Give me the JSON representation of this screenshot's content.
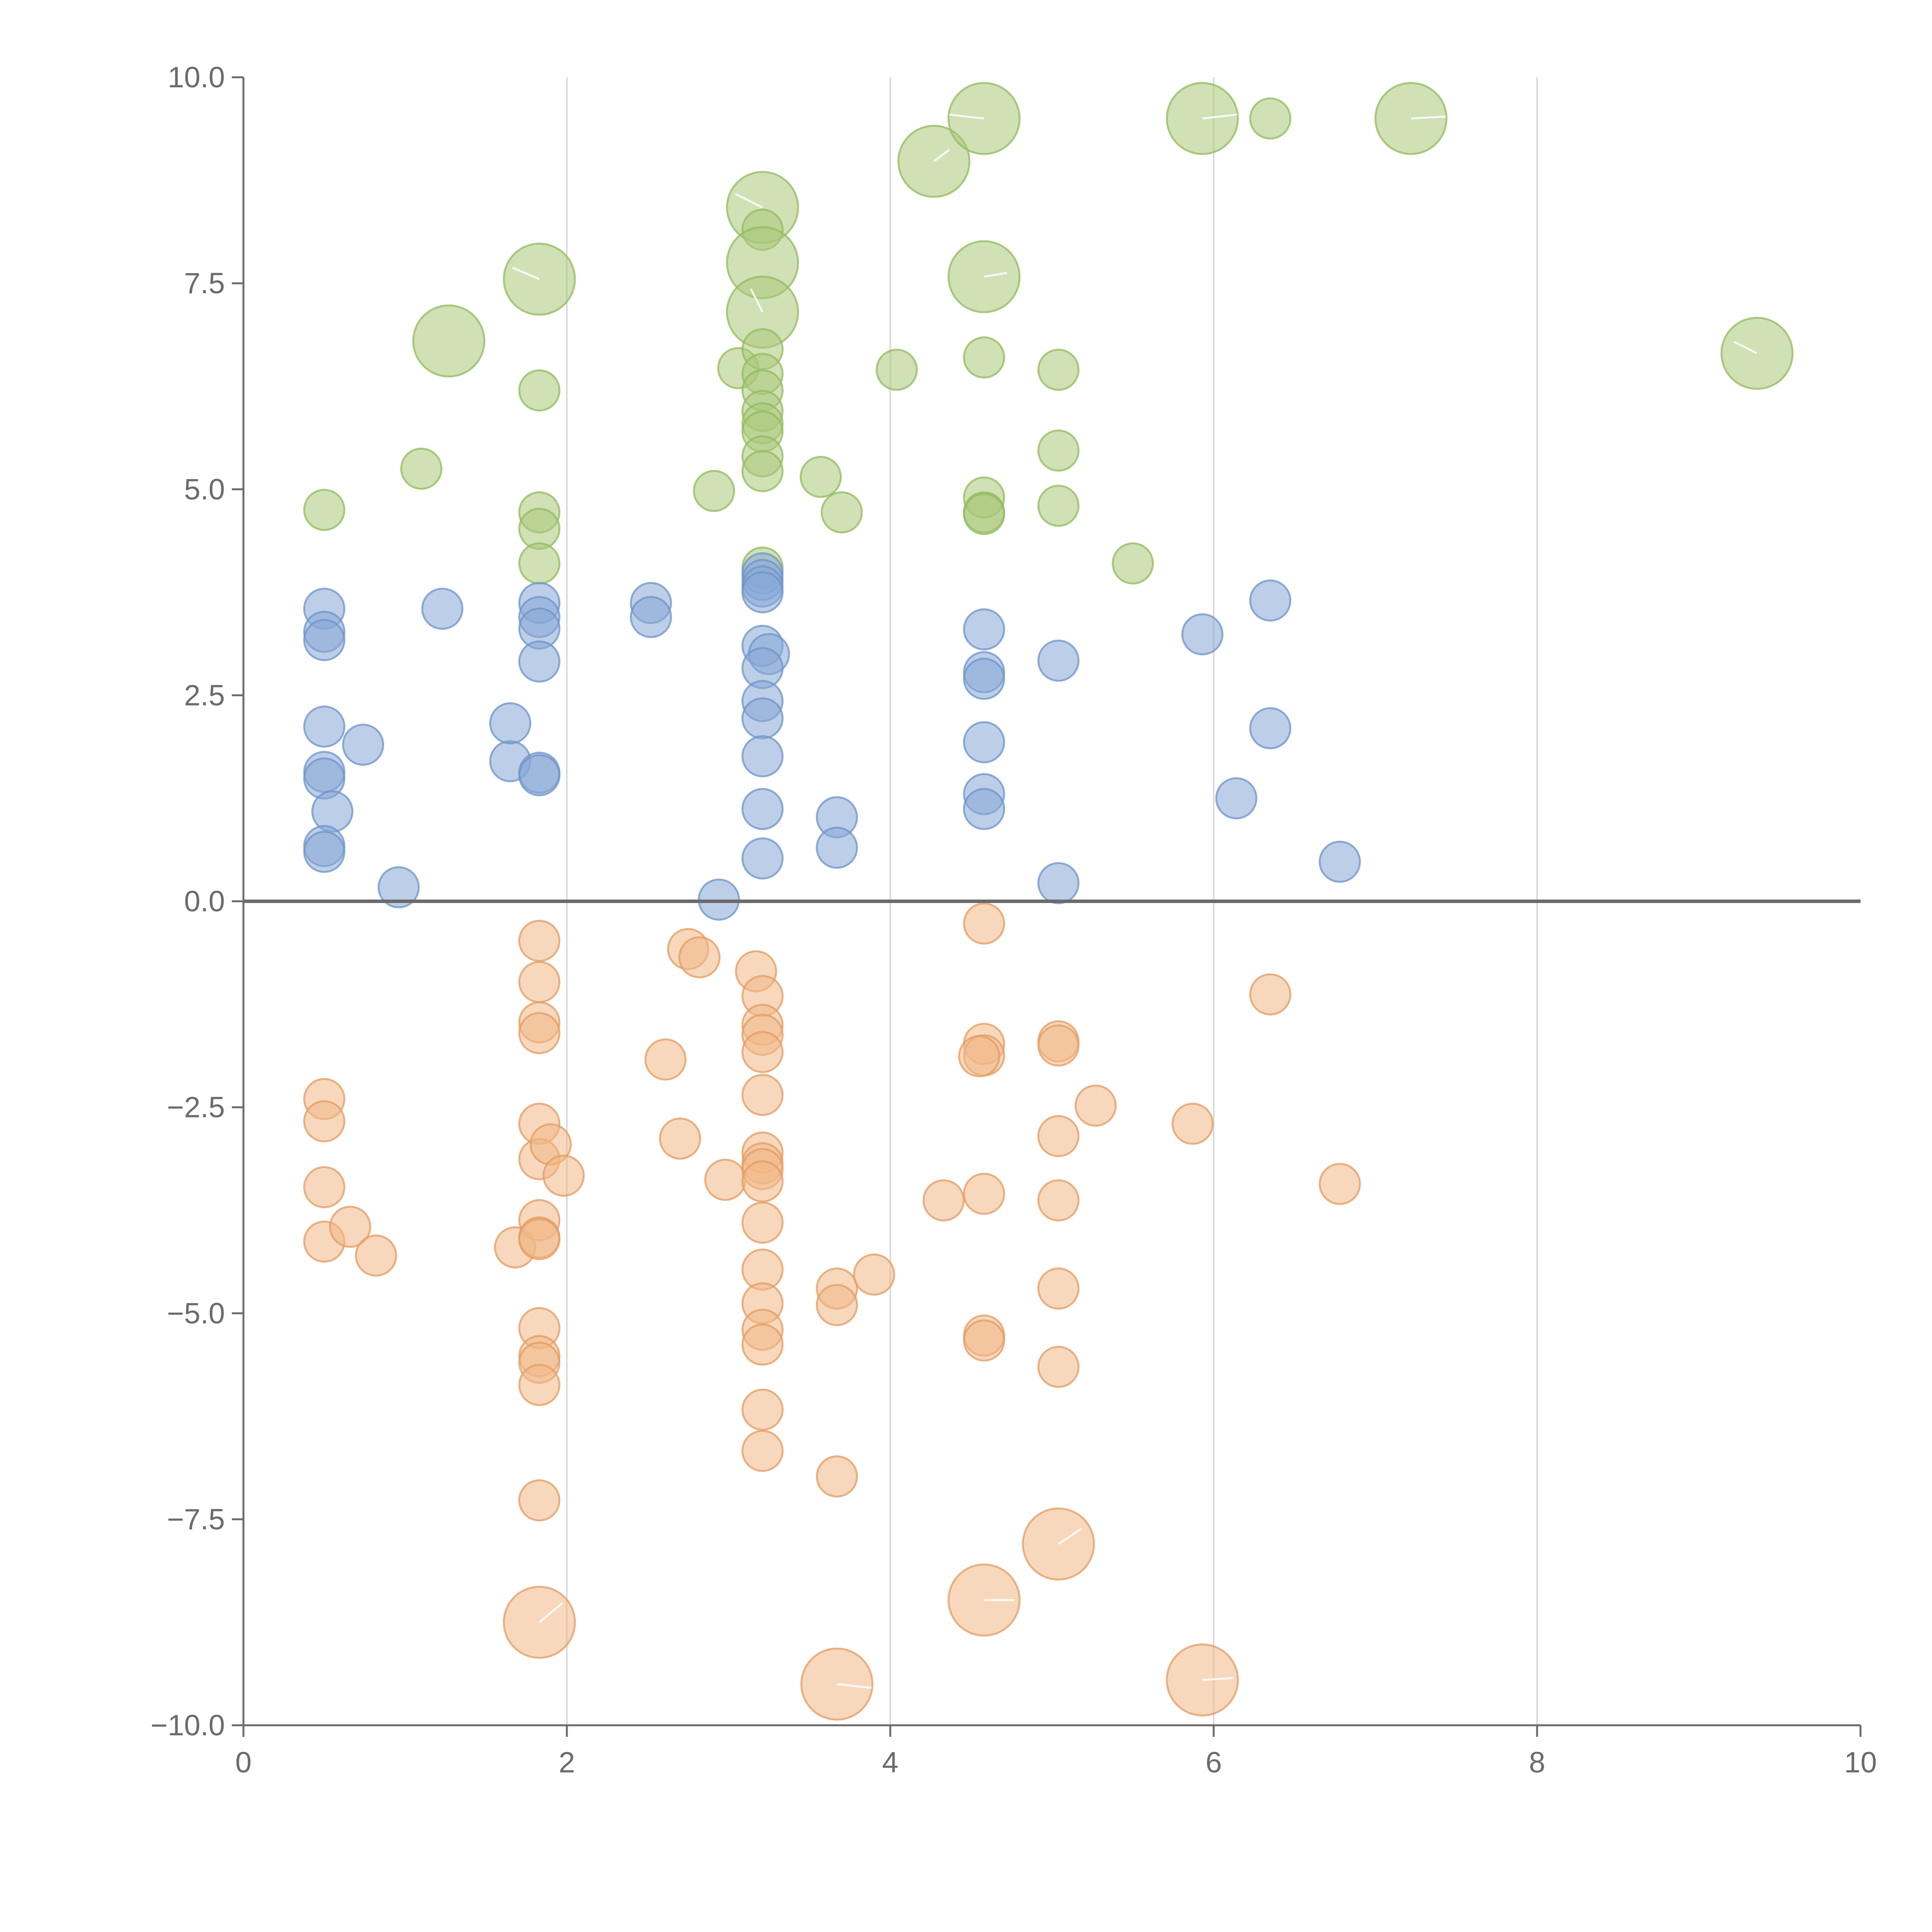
{
  "chart_data": {
    "type": "scatter",
    "title": "",
    "xlabel": "",
    "ylabel": "",
    "xlim": [
      0,
      10
    ],
    "ylim": [
      -10,
      10
    ],
    "grid": "vertical",
    "x_ticks": [
      0,
      2,
      4,
      6,
      8,
      10
    ],
    "x_tick_labels": [
      "0",
      "2",
      "4",
      "6",
      "8",
      "10"
    ],
    "y_ticks": [
      10,
      7.5,
      5,
      2.5,
      0,
      -2.5,
      -5,
      -7.5,
      -10
    ],
    "y_tick_labels": [
      "10.0",
      "7.5",
      "5.0",
      "2.5",
      "0.0",
      "−2.5",
      "−5.0",
      "−7.5",
      "−10.0"
    ],
    "zero_line": 0,
    "series": [
      {
        "name": "green",
        "color": "#a9c97a",
        "stroke": "#93ba5c",
        "points": [
          {
            "x": 0.5,
            "y": 4.75,
            "s": 1
          },
          {
            "x": 1.1,
            "y": 5.25,
            "s": 1
          },
          {
            "x": 1.27,
            "y": 6.8,
            "s": 2
          },
          {
            "x": 1.83,
            "y": 7.55,
            "s": 2
          },
          {
            "x": 1.83,
            "y": 6.2,
            "s": 1
          },
          {
            "x": 1.83,
            "y": 4.72,
            "s": 1
          },
          {
            "x": 1.83,
            "y": 4.52,
            "s": 1
          },
          {
            "x": 1.83,
            "y": 4.1,
            "s": 1
          },
          {
            "x": 2.91,
            "y": 4.98,
            "s": 1
          },
          {
            "x": 3.06,
            "y": 6.47,
            "s": 1
          },
          {
            "x": 3.21,
            "y": 8.42,
            "s": 2
          },
          {
            "x": 3.21,
            "y": 8.15,
            "s": 1
          },
          {
            "x": 3.21,
            "y": 7.75,
            "s": 2
          },
          {
            "x": 3.21,
            "y": 7.15,
            "s": 2
          },
          {
            "x": 3.21,
            "y": 6.7,
            "s": 1
          },
          {
            "x": 3.21,
            "y": 6.4,
            "s": 1
          },
          {
            "x": 3.21,
            "y": 6.2,
            "s": 1
          },
          {
            "x": 3.21,
            "y": 5.95,
            "s": 1
          },
          {
            "x": 3.21,
            "y": 5.8,
            "s": 1
          },
          {
            "x": 3.21,
            "y": 5.7,
            "s": 1
          },
          {
            "x": 3.21,
            "y": 5.4,
            "s": 1
          },
          {
            "x": 3.21,
            "y": 5.22,
            "s": 1
          },
          {
            "x": 3.21,
            "y": 4.05,
            "s": 1
          },
          {
            "x": 3.57,
            "y": 5.15,
            "s": 1
          },
          {
            "x": 3.7,
            "y": 4.72,
            "s": 1
          },
          {
            "x": 4.04,
            "y": 6.45,
            "s": 1
          },
          {
            "x": 4.27,
            "y": 8.98,
            "s": 2
          },
          {
            "x": 4.58,
            "y": 9.5,
            "s": 2
          },
          {
            "x": 4.58,
            "y": 7.58,
            "s": 2
          },
          {
            "x": 4.58,
            "y": 6.6,
            "s": 1
          },
          {
            "x": 4.58,
            "y": 4.9,
            "s": 1
          },
          {
            "x": 4.58,
            "y": 4.72,
            "s": 1
          },
          {
            "x": 4.58,
            "y": 4.7,
            "s": 1
          },
          {
            "x": 5.04,
            "y": 6.45,
            "s": 1
          },
          {
            "x": 5.04,
            "y": 5.47,
            "s": 1
          },
          {
            "x": 5.04,
            "y": 4.8,
            "s": 1
          },
          {
            "x": 5.5,
            "y": 4.1,
            "s": 1
          },
          {
            "x": 5.93,
            "y": 9.5,
            "s": 2
          },
          {
            "x": 6.35,
            "y": 9.5,
            "s": 1
          },
          {
            "x": 7.22,
            "y": 9.5,
            "s": 2
          },
          {
            "x": 9.36,
            "y": 6.65,
            "s": 2
          }
        ]
      },
      {
        "name": "blue",
        "color": "#86a7d6",
        "stroke": "#6e93c9",
        "points": [
          {
            "x": 0.5,
            "y": 3.55,
            "s": 1
          },
          {
            "x": 0.5,
            "y": 3.27,
            "s": 1
          },
          {
            "x": 0.5,
            "y": 3.17,
            "s": 1
          },
          {
            "x": 0.5,
            "y": 2.12,
            "s": 1
          },
          {
            "x": 0.5,
            "y": 1.57,
            "s": 1
          },
          {
            "x": 0.5,
            "y": 1.49,
            "s": 1
          },
          {
            "x": 0.55,
            "y": 1.09,
            "s": 1
          },
          {
            "x": 0.5,
            "y": 0.67,
            "s": 1
          },
          {
            "x": 0.5,
            "y": 0.6,
            "s": 1
          },
          {
            "x": 0.74,
            "y": 1.9,
            "s": 1
          },
          {
            "x": 0.96,
            "y": 0.17,
            "s": 1
          },
          {
            "x": 1.23,
            "y": 3.55,
            "s": 1
          },
          {
            "x": 1.65,
            "y": 1.7,
            "s": 1
          },
          {
            "x": 1.65,
            "y": 2.16,
            "s": 1
          },
          {
            "x": 1.83,
            "y": 1.56,
            "s": 1
          },
          {
            "x": 1.83,
            "y": 1.53,
            "s": 1
          },
          {
            "x": 1.83,
            "y": 3.62,
            "s": 1
          },
          {
            "x": 1.83,
            "y": 3.45,
            "s": 1
          },
          {
            "x": 1.83,
            "y": 3.31,
            "s": 1
          },
          {
            "x": 1.83,
            "y": 2.91,
            "s": 1
          },
          {
            "x": 2.52,
            "y": 3.62,
            "s": 1
          },
          {
            "x": 2.52,
            "y": 3.45,
            "s": 1
          },
          {
            "x": 2.94,
            "y": 0.02,
            "s": 1
          },
          {
            "x": 3.21,
            "y": 3.98,
            "s": 1
          },
          {
            "x": 3.21,
            "y": 3.9,
            "s": 1
          },
          {
            "x": 3.21,
            "y": 3.82,
            "s": 1
          },
          {
            "x": 3.21,
            "y": 3.75,
            "s": 1
          },
          {
            "x": 3.21,
            "y": 3.1,
            "s": 1
          },
          {
            "x": 3.25,
            "y": 3.0,
            "s": 1
          },
          {
            "x": 3.21,
            "y": 2.83,
            "s": 1
          },
          {
            "x": 3.21,
            "y": 2.43,
            "s": 1
          },
          {
            "x": 3.21,
            "y": 2.22,
            "s": 1
          },
          {
            "x": 3.21,
            "y": 1.76,
            "s": 1
          },
          {
            "x": 3.21,
            "y": 1.12,
            "s": 1
          },
          {
            "x": 3.21,
            "y": 0.52,
            "s": 1
          },
          {
            "x": 3.67,
            "y": 1.02,
            "s": 1
          },
          {
            "x": 3.67,
            "y": 0.65,
            "s": 1
          },
          {
            "x": 4.58,
            "y": 3.3,
            "s": 1
          },
          {
            "x": 4.58,
            "y": 2.78,
            "s": 1
          },
          {
            "x": 4.58,
            "y": 2.7,
            "s": 1
          },
          {
            "x": 4.58,
            "y": 1.93,
            "s": 1
          },
          {
            "x": 4.58,
            "y": 1.3,
            "s": 1
          },
          {
            "x": 4.58,
            "y": 1.12,
            "s": 1
          },
          {
            "x": 5.04,
            "y": 2.92,
            "s": 1
          },
          {
            "x": 5.04,
            "y": 0.22,
            "s": 1
          },
          {
            "x": 5.93,
            "y": 3.24,
            "s": 1
          },
          {
            "x": 6.14,
            "y": 1.25,
            "s": 1
          },
          {
            "x": 6.35,
            "y": 3.65,
            "s": 1
          },
          {
            "x": 6.35,
            "y": 2.1,
            "s": 1
          },
          {
            "x": 6.78,
            "y": 0.48,
            "s": 1
          }
        ]
      },
      {
        "name": "orange",
        "color": "#f0b887",
        "stroke": "#e39b61",
        "points": [
          {
            "x": 0.5,
            "y": -2.4,
            "s": 1
          },
          {
            "x": 0.5,
            "y": -2.67,
            "s": 1
          },
          {
            "x": 0.5,
            "y": -3.47,
            "s": 1
          },
          {
            "x": 0.5,
            "y": -4.13,
            "s": 1
          },
          {
            "x": 0.66,
            "y": -3.95,
            "s": 1
          },
          {
            "x": 0.82,
            "y": -4.3,
            "s": 1
          },
          {
            "x": 1.68,
            "y": -4.2,
            "s": 1
          },
          {
            "x": 1.83,
            "y": -0.48,
            "s": 1
          },
          {
            "x": 1.83,
            "y": -0.98,
            "s": 1
          },
          {
            "x": 1.83,
            "y": -1.47,
            "s": 1
          },
          {
            "x": 1.83,
            "y": -1.6,
            "s": 1
          },
          {
            "x": 1.83,
            "y": -2.7,
            "s": 1
          },
          {
            "x": 1.83,
            "y": -3.13,
            "s": 1
          },
          {
            "x": 1.9,
            "y": -2.95,
            "s": 1
          },
          {
            "x": 1.98,
            "y": -3.33,
            "s": 1
          },
          {
            "x": 1.83,
            "y": -3.87,
            "s": 1
          },
          {
            "x": 1.83,
            "y": -4.08,
            "s": 1
          },
          {
            "x": 1.83,
            "y": -4.1,
            "s": 1
          },
          {
            "x": 1.83,
            "y": -5.18,
            "s": 1
          },
          {
            "x": 1.83,
            "y": -5.52,
            "s": 1
          },
          {
            "x": 1.83,
            "y": -5.6,
            "s": 1
          },
          {
            "x": 1.83,
            "y": -5.87,
            "s": 1
          },
          {
            "x": 1.83,
            "y": -7.27,
            "s": 1
          },
          {
            "x": 1.83,
            "y": -8.75,
            "s": 2
          },
          {
            "x": 2.61,
            "y": -1.92,
            "s": 1
          },
          {
            "x": 2.7,
            "y": -2.88,
            "s": 1
          },
          {
            "x": 2.75,
            "y": -0.58,
            "s": 1
          },
          {
            "x": 2.82,
            "y": -0.68,
            "s": 1
          },
          {
            "x": 2.98,
            "y": -3.38,
            "s": 1
          },
          {
            "x": 3.17,
            "y": -0.85,
            "s": 1
          },
          {
            "x": 3.21,
            "y": -1.15,
            "s": 1
          },
          {
            "x": 3.21,
            "y": -1.5,
            "s": 1
          },
          {
            "x": 3.21,
            "y": -1.62,
            "s": 1
          },
          {
            "x": 3.21,
            "y": -1.83,
            "s": 1
          },
          {
            "x": 3.21,
            "y": -2.35,
            "s": 1
          },
          {
            "x": 3.21,
            "y": -3.05,
            "s": 1
          },
          {
            "x": 3.21,
            "y": -3.18,
            "s": 1
          },
          {
            "x": 3.21,
            "y": -3.25,
            "s": 1
          },
          {
            "x": 3.21,
            "y": -3.4,
            "s": 1
          },
          {
            "x": 3.21,
            "y": -3.9,
            "s": 1
          },
          {
            "x": 3.21,
            "y": -4.47,
            "s": 1
          },
          {
            "x": 3.21,
            "y": -4.88,
            "s": 1
          },
          {
            "x": 3.21,
            "y": -5.2,
            "s": 1
          },
          {
            "x": 3.21,
            "y": -5.38,
            "s": 1
          },
          {
            "x": 3.21,
            "y": -6.17,
            "s": 1
          },
          {
            "x": 3.21,
            "y": -6.67,
            "s": 1
          },
          {
            "x": 3.67,
            "y": -4.7,
            "s": 1
          },
          {
            "x": 3.67,
            "y": -4.9,
            "s": 1
          },
          {
            "x": 3.67,
            "y": -6.98,
            "s": 1
          },
          {
            "x": 3.67,
            "y": -9.5,
            "s": 2
          },
          {
            "x": 3.9,
            "y": -4.53,
            "s": 1
          },
          {
            "x": 4.33,
            "y": -3.63,
            "s": 1
          },
          {
            "x": 4.58,
            "y": -0.27,
            "s": 1
          },
          {
            "x": 4.58,
            "y": -1.73,
            "s": 1
          },
          {
            "x": 4.58,
            "y": -1.87,
            "s": 1
          },
          {
            "x": 4.55,
            "y": -1.88,
            "s": 1
          },
          {
            "x": 4.58,
            "y": -3.55,
            "s": 1
          },
          {
            "x": 4.58,
            "y": -5.27,
            "s": 1
          },
          {
            "x": 4.58,
            "y": -5.33,
            "s": 1
          },
          {
            "x": 4.58,
            "y": -8.48,
            "s": 2
          },
          {
            "x": 5.04,
            "y": -1.7,
            "s": 1
          },
          {
            "x": 5.04,
            "y": -1.75,
            "s": 1
          },
          {
            "x": 5.04,
            "y": -2.85,
            "s": 1
          },
          {
            "x": 5.04,
            "y": -3.63,
            "s": 1
          },
          {
            "x": 5.04,
            "y": -4.7,
            "s": 1
          },
          {
            "x": 5.04,
            "y": -5.65,
            "s": 1
          },
          {
            "x": 5.04,
            "y": -7.8,
            "s": 2
          },
          {
            "x": 5.27,
            "y": -2.48,
            "s": 1
          },
          {
            "x": 5.87,
            "y": -2.7,
            "s": 1
          },
          {
            "x": 5.93,
            "y": -9.45,
            "s": 2
          },
          {
            "x": 6.35,
            "y": -1.13,
            "s": 1
          },
          {
            "x": 6.78,
            "y": -3.43,
            "s": 1
          }
        ]
      }
    ]
  }
}
